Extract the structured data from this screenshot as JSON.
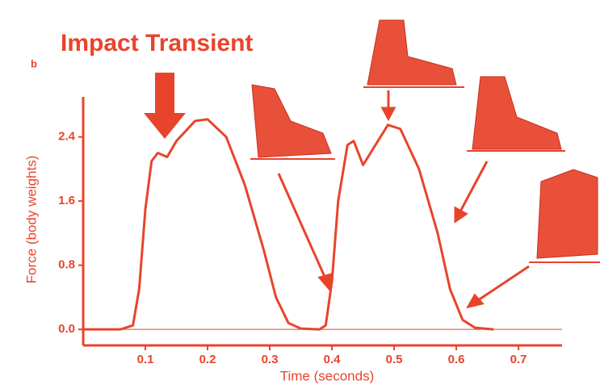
{
  "chart_data": {
    "type": "line",
    "title": "Impact Transient",
    "panel_label": "b",
    "x_label": "Time (seconds)",
    "y_label": "Force (body weights)",
    "x": [
      0,
      0.06,
      0.08,
      0.09,
      0.1,
      0.11,
      0.12,
      0.135,
      0.15,
      0.18,
      0.2,
      0.23,
      0.26,
      0.29,
      0.31,
      0.33,
      0.35,
      0.38,
      0.39,
      0.4,
      0.41,
      0.425,
      0.435,
      0.45,
      0.47,
      0.49,
      0.51,
      0.54,
      0.57,
      0.59,
      0.61,
      0.63,
      0.66
    ],
    "series": [
      {
        "color": "#e8442c",
        "values": [
          0,
          0,
          0.05,
          0.5,
          1.5,
          2.1,
          2.2,
          2.15,
          2.35,
          2.6,
          2.62,
          2.4,
          1.8,
          1.0,
          0.4,
          0.08,
          0.01,
          0,
          0.05,
          0.6,
          1.6,
          2.3,
          2.35,
          2.05,
          2.3,
          2.55,
          2.5,
          2.0,
          1.2,
          0.5,
          0.12,
          0.02,
          0
        ]
      }
    ],
    "xlim": [
      0,
      0.77
    ],
    "xticks": [
      0.1,
      0.2,
      0.3,
      0.4,
      0.5,
      0.6,
      0.7
    ],
    "ylim": [
      -0.2,
      2.9
    ],
    "yticks": [
      {
        "value": 0,
        "label": "0.0"
      },
      0.8,
      1.6,
      2.4
    ]
  }
}
